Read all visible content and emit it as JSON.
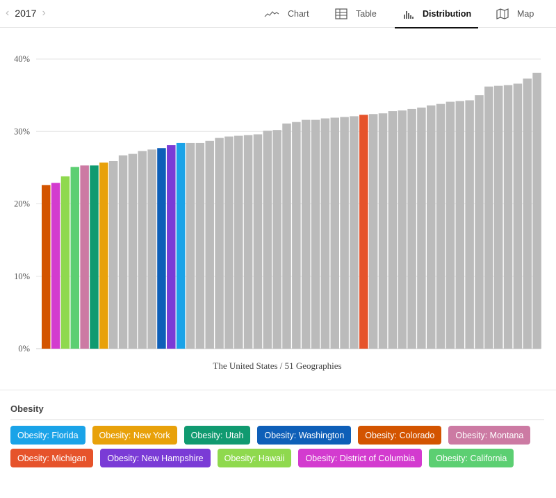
{
  "nav": {
    "year": "2017",
    "prev_icon": "chevron-left-icon",
    "next_icon": "chevron-right-icon",
    "tabs": [
      {
        "label": "Chart",
        "icon": "line-chart-icon"
      },
      {
        "label": "Table",
        "icon": "table-icon"
      },
      {
        "label": "Distribution",
        "icon": "distribution-icon",
        "active": true
      },
      {
        "label": "Map",
        "icon": "map-icon"
      }
    ]
  },
  "chart_data": {
    "type": "bar",
    "xlabel": "The United States / 51 Geographies",
    "ylabel": "",
    "ylim": [
      0,
      40
    ],
    "yticks": [
      "0%",
      "10%",
      "20%",
      "30%",
      "40%"
    ],
    "ytick_values": [
      0,
      10,
      20,
      30,
      40
    ],
    "grid": true,
    "values": [
      22.6,
      22.9,
      23.8,
      25.1,
      25.3,
      25.3,
      25.7,
      25.9,
      26.7,
      26.9,
      27.3,
      27.5,
      27.7,
      28.1,
      28.4,
      28.4,
      28.4,
      28.7,
      29.1,
      29.3,
      29.4,
      29.5,
      29.6,
      30.1,
      30.2,
      31.1,
      31.3,
      31.6,
      31.6,
      31.8,
      31.9,
      32.0,
      32.1,
      32.3,
      32.4,
      32.5,
      32.8,
      32.9,
      33.1,
      33.3,
      33.6,
      33.8,
      34.1,
      34.2,
      34.3,
      35.0,
      36.2,
      36.3,
      36.4,
      36.6,
      37.3,
      38.1
    ],
    "bar_colors": [
      "#d35400",
      "#d33bcf",
      "#8fd94e",
      "#5ccf72",
      "#cc7aa3",
      "#109a70",
      "#e8a10a",
      "#bbbbbb",
      "#bbbbbb",
      "#bbbbbb",
      "#bbbbbb",
      "#bbbbbb",
      "#0e5fb8",
      "#7a3bd6",
      "#1aa3e8",
      "#bbbbbb",
      "#bbbbbb",
      "#bbbbbb",
      "#bbbbbb",
      "#bbbbbb",
      "#bbbbbb",
      "#bbbbbb",
      "#bbbbbb",
      "#bbbbbb",
      "#bbbbbb",
      "#bbbbbb",
      "#bbbbbb",
      "#bbbbbb",
      "#bbbbbb",
      "#bbbbbb",
      "#bbbbbb",
      "#bbbbbb",
      "#bbbbbb",
      "#e6532b",
      "#bbbbbb",
      "#bbbbbb",
      "#bbbbbb",
      "#bbbbbb",
      "#bbbbbb",
      "#bbbbbb",
      "#bbbbbb",
      "#bbbbbb",
      "#bbbbbb",
      "#bbbbbb",
      "#bbbbbb",
      "#bbbbbb",
      "#bbbbbb",
      "#bbbbbb",
      "#bbbbbb",
      "#bbbbbb",
      "#bbbbbb",
      "#bbbbbb"
    ],
    "highlighted": [
      {
        "name": "Obesity: Colorado",
        "value": 22.6
      },
      {
        "name": "Obesity: District of Columbia",
        "value": 22.9
      },
      {
        "name": "Obesity: Hawaii",
        "value": 23.8
      },
      {
        "name": "Obesity: California",
        "value": 25.1
      },
      {
        "name": "Obesity: Montana",
        "value": 25.3
      },
      {
        "name": "Obesity: Utah",
        "value": 25.3
      },
      {
        "name": "Obesity: New York",
        "value": 25.7
      },
      {
        "name": "Obesity: Washington",
        "value": 27.7
      },
      {
        "name": "Obesity: New Hampshire",
        "value": 28.1
      },
      {
        "name": "Obesity: Florida",
        "value": 28.4
      },
      {
        "name": "Obesity: Michigan",
        "value": 32.3
      }
    ]
  },
  "legend": {
    "title": "Obesity",
    "items": [
      {
        "label": "Obesity: Florida",
        "color": "#1aa3e8"
      },
      {
        "label": "Obesity: New York",
        "color": "#e8a10a"
      },
      {
        "label": "Obesity: Utah",
        "color": "#109a70"
      },
      {
        "label": "Obesity: Washington",
        "color": "#0e5fb8"
      },
      {
        "label": "Obesity: Colorado",
        "color": "#d35400"
      },
      {
        "label": "Obesity: Montana",
        "color": "#cc7aa3"
      },
      {
        "label": "Obesity: Michigan",
        "color": "#e6532b"
      },
      {
        "label": "Obesity: New Hampshire",
        "color": "#7a3bd6"
      },
      {
        "label": "Obesity: Hawaii",
        "color": "#8fd94e"
      },
      {
        "label": "Obesity: District of Columbia",
        "color": "#d33bcf"
      },
      {
        "label": "Obesity: California",
        "color": "#5ccf72"
      }
    ]
  }
}
